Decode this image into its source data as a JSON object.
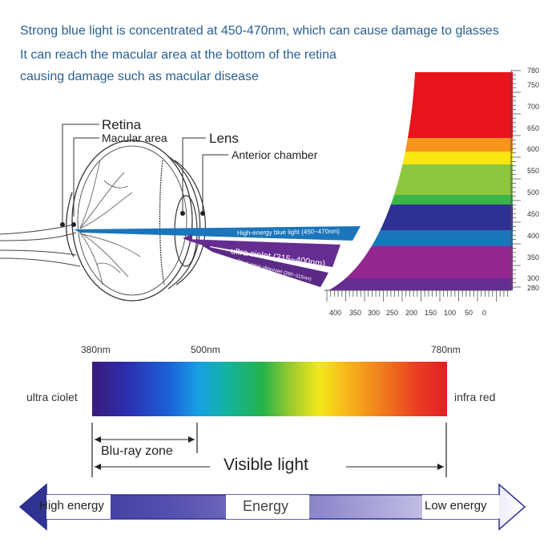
{
  "header": {
    "line1": "Strong blue light is concentrated at 450-470nm, which can cause damage to glasses",
    "line2": "It can reach the macular area at the bottom of the retina",
    "line3": "causing damage such as macular disease"
  },
  "eye_labels": {
    "retina": "Retina",
    "macular": "Macular area",
    "lens": "Lens",
    "anterior": "Anterior chamber"
  },
  "beams": {
    "blue": "High-energy blue light (450~470nm)",
    "uva": "ultra ciolet (315~400nm)",
    "uvb": "Short-wave ultraviolet (280~315nm)"
  },
  "wavelength_axis": {
    "labels": [
      "780",
      "750",
      "700",
      "650",
      "600",
      "550",
      "500",
      "450",
      "400",
      "350",
      "300",
      "280"
    ]
  },
  "energy_axis": {
    "labels": [
      "400",
      "350",
      "300",
      "250",
      "200",
      "150",
      "100",
      "50",
      "0"
    ]
  },
  "spectrum": {
    "start": "380nm",
    "mid": "500nm",
    "end": "780nm",
    "left_label": "ultra ciolet",
    "right_label": "infra red",
    "bluray": "Blu-ray zone",
    "visible": "Visible light"
  },
  "energy_bar": {
    "high": "High energy",
    "center": "Energy",
    "low": "Low energy"
  },
  "colors": {
    "header_text": "#2a5f92",
    "red": "#e8141c",
    "orange": "#f7941d",
    "yellow": "#fde513",
    "green": "#8dc63f",
    "blue": "#1b75bb",
    "indigo": "#2e3192",
    "violet": "#662d91",
    "arrow_fill": "#5a4fa8"
  }
}
